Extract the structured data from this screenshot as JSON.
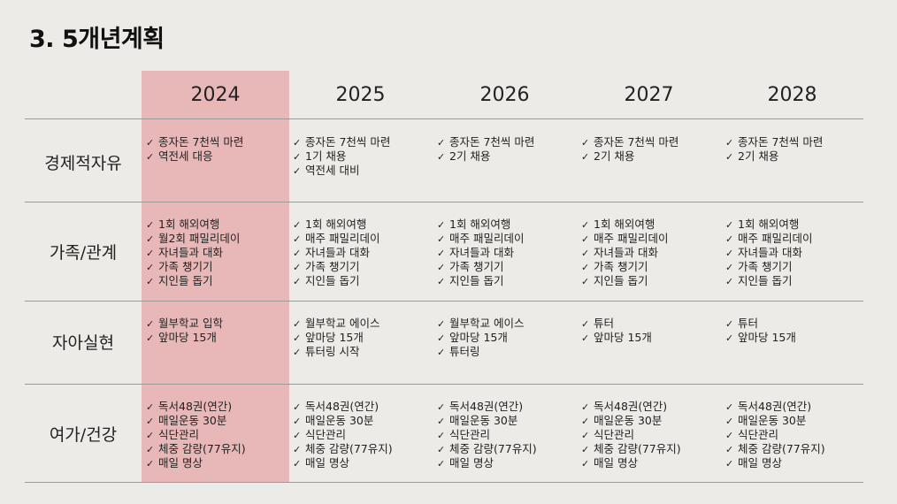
{
  "title": "3. 5개년계획",
  "years": [
    "2024",
    "2025",
    "2026",
    "2027",
    "2028"
  ],
  "check_icon": "✓",
  "rows": [
    {
      "label": "경제적자유",
      "cells": [
        [
          "종자돈 7천씩 마련",
          "역전세 대응"
        ],
        [
          "종자돈 7천씩 마련",
          "1기 채용",
          "역전세 대비"
        ],
        [
          "종자돈 7천씩 마련",
          "2기 채용"
        ],
        [
          "종자돈 7천씩 마련",
          "2기 채용"
        ],
        [
          "종자돈 7천씩 마련",
          "2기 채용"
        ]
      ]
    },
    {
      "label": "가족/관계",
      "cells": [
        [
          "1회 해외여행",
          "월2회 패밀리데이",
          "자녀들과 대화",
          "가족 챙기기",
          "지인들 돕기"
        ],
        [
          "1회 해외여행",
          "매주 패밀리데이",
          "자녀들과 대화",
          "가족 챙기기",
          "지인들 돕기"
        ],
        [
          "1회 해외여행",
          "매주 패밀리데이",
          "자녀들과 대화",
          "가족 챙기기",
          "지인들 돕기"
        ],
        [
          "1회 해외여행",
          "매주 패밀리데이",
          "자녀들과 대화",
          "가족 챙기기",
          "지인들 돕기"
        ],
        [
          "1회 해외여행",
          "매주 패밀리데이",
          "자녀들과 대화",
          "가족 챙기기",
          "지인들 돕기"
        ]
      ]
    },
    {
      "label": "자아실현",
      "cells": [
        [
          "월부학교 입학",
          "앞마당 15개"
        ],
        [
          "월부학교 에이스",
          "앞마당 15개",
          "튜터링 시작"
        ],
        [
          "월부학교 에이스",
          "앞마당 15개",
          "튜터링"
        ],
        [
          "튜터",
          "앞마당 15개"
        ],
        [
          "튜터",
          "앞마당 15개"
        ]
      ]
    },
    {
      "label": "여가/건강",
      "cells": [
        [
          "독서48권(연간)",
          "매일운동 30분",
          "식단관리",
          "체중 감량(77유지)",
          "매일 명상"
        ],
        [
          "독서48권(연간)",
          "매일운동 30분",
          "식단관리",
          "체중 감량(77유지)",
          "매일 명상"
        ],
        [
          "독서48권(연간)",
          "매일운동 30분",
          "식단관리",
          "체중 감량(77유지)",
          "매일 명상"
        ],
        [
          "독서48권(연간)",
          "매일운동 30분",
          "식단관리",
          "체중 감량(77유지)",
          "매일 명상"
        ],
        [
          "독서48권(연간)",
          "매일운동 30분",
          "식단관리",
          "체중 감량(77유지)",
          "매일 명상"
        ]
      ]
    }
  ]
}
